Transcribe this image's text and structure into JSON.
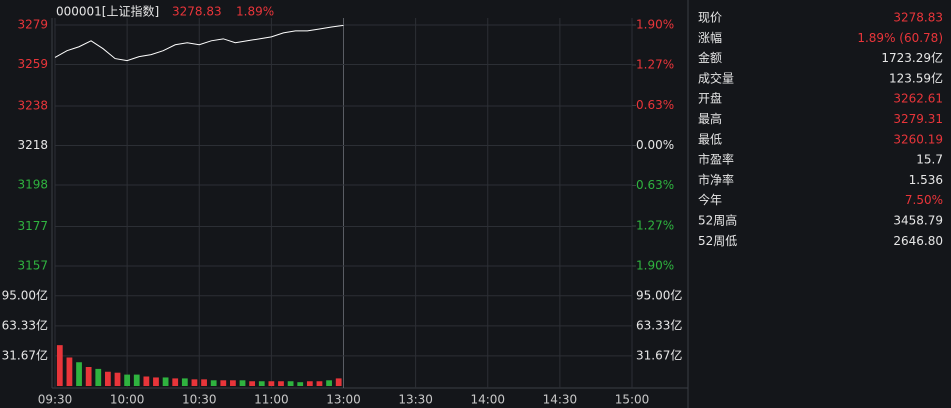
{
  "chart_data": {
    "type": "intraday",
    "header": {
      "code": "000001[上证指数]",
      "price": "3278.83",
      "change": "1.89%"
    },
    "up_color": "#e8353a",
    "down_color": "#2fb33f",
    "xticks": [
      "09:30",
      "10:00",
      "10:30",
      "11:00",
      "13:00",
      "13:30",
      "14:00",
      "14:30",
      "15:00"
    ],
    "price": {
      "color": "#ffffff",
      "values": [
        3262.6,
        3266,
        3268,
        3271,
        3267,
        3262,
        3261,
        3263,
        3264,
        3266,
        3269,
        3270,
        3269,
        3271,
        3272,
        3270,
        3271,
        3272,
        3273,
        3275,
        3276,
        3276,
        3277,
        3278,
        3278.8,
        null,
        null,
        null,
        null,
        null,
        null,
        null,
        null,
        null,
        null,
        null,
        null,
        null,
        null,
        null,
        null,
        null,
        null,
        null,
        null,
        null,
        null,
        null,
        null
      ]
    },
    "ylim": [
      3157,
      3279
    ],
    "yticks": [
      3279,
      3259,
      3238,
      3218,
      3198,
      3177,
      3157
    ],
    "y2lim": [
      -1.9,
      1.9
    ],
    "y2ticks": [
      {
        "value": 1.9,
        "label": "1.90%"
      },
      {
        "value": 1.27,
        "label": "1.27%"
      },
      {
        "value": 0.63,
        "label": "0.63%"
      },
      {
        "value": 0,
        "label": "0.00%"
      },
      {
        "value": -0.63,
        "label": "0.63%"
      },
      {
        "value": -1.27,
        "label": "1.27%"
      },
      {
        "value": -1.9,
        "label": "1.90%"
      }
    ],
    "volume": {
      "values": [
        43,
        30,
        25,
        20,
        18,
        15,
        14,
        12,
        12,
        10,
        9,
        9,
        8,
        8,
        7,
        7,
        6,
        6,
        6,
        6,
        5,
        5,
        5,
        5,
        5,
        4,
        5,
        5,
        6,
        8,
        null,
        null,
        null,
        null,
        null,
        null,
        null,
        null,
        null,
        null,
        null,
        null,
        null,
        null,
        null,
        null,
        null,
        null,
        null,
        null,
        null,
        null,
        null,
        null,
        null,
        null,
        null,
        null,
        null,
        null
      ],
      "colors": [
        "#e8353a",
        "#e8353a",
        "#2fb33f",
        "#e8353a",
        "#2fb33f",
        "#e8353a",
        "#e8353a",
        "#2fb33f",
        "#2fb33f",
        "#e8353a",
        "#e8353a",
        "#2fb33f",
        "#e8353a",
        "#2fb33f",
        "#e8353a",
        "#e8353a",
        "#2fb33f",
        "#e8353a",
        "#e8353a",
        "#2fb33f",
        "#e8353a",
        "#2fb33f",
        "#e8353a",
        "#e8353a",
        "#2fb33f",
        "#2fb33f",
        "#e8353a",
        "#e8353a",
        "#2fb33f",
        "#e8353a",
        null,
        null,
        null,
        null,
        null,
        null,
        null,
        null,
        null,
        null,
        null,
        null,
        null,
        null,
        null,
        null,
        null,
        null,
        null,
        null,
        null,
        null,
        null,
        null,
        null,
        null,
        null,
        null,
        null,
        null
      ],
      "ylim": [
        0,
        120
      ],
      "yticks": [
        {
          "value": 95,
          "label": "95.00亿"
        },
        {
          "value": 63.33,
          "label": "63.33亿"
        },
        {
          "value": 31.67,
          "label": "31.67亿"
        }
      ]
    }
  },
  "quote_panel": {
    "rows": [
      {
        "label": "现价",
        "value": "3278.83",
        "color": "#e8353a"
      },
      {
        "label": "涨幅",
        "value": "1.89% (60.78)",
        "color": "#e8353a"
      },
      {
        "label": "金额",
        "value": "1723.29亿",
        "color": "#e6e6e6"
      },
      {
        "label": "成交量",
        "value": "123.59亿",
        "color": "#e6e6e6"
      },
      {
        "label": "开盘",
        "value": "3262.61",
        "color": "#e8353a"
      },
      {
        "label": "最高",
        "value": "3279.31",
        "color": "#e8353a"
      },
      {
        "label": "最低",
        "value": "3260.19",
        "color": "#e8353a"
      },
      {
        "label": "市盈率",
        "value": "15.7",
        "color": "#e6e6e6"
      },
      {
        "label": "市净率",
        "value": "1.536",
        "color": "#e6e6e6"
      },
      {
        "label": "今年",
        "value": "7.50%",
        "color": "#e8353a"
      },
      {
        "label": "52周高",
        "value": "3458.79",
        "color": "#e6e6e6"
      },
      {
        "label": "52周低",
        "value": "2646.80",
        "color": "#e6e6e6"
      }
    ]
  }
}
